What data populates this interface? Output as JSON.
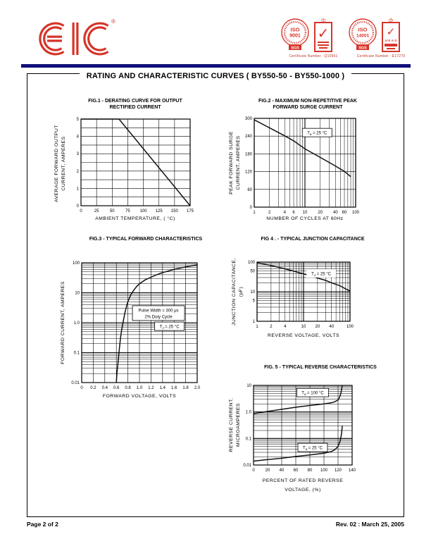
{
  "header": {
    "logo": {
      "text": "EIC",
      "registered": "®"
    },
    "certifications": [
      {
        "standard": "ISO 9001",
        "iso_word": "ISO",
        "iso_number": "9001",
        "registrar": "SGS",
        "certificate": "Certificate Number : Q10561"
      },
      {
        "standard": "ISO 14001",
        "iso_word": "ISO",
        "iso_number": "14001",
        "registrar": "SGS",
        "accreditation": "U K A S",
        "certificate": "Certificate Number : E17279"
      }
    ]
  },
  "title": "RATING AND CHARACTERISTIC CURVES  ( BY550-50 - BY550-1000 )",
  "footer": {
    "page": "Page 2 of 2",
    "revision": "Rev. 02 : March 25, 2005"
  },
  "colors": {
    "accent_red": "#d63429",
    "rule_blue": "#0e0e7a",
    "curve_black": "#111111"
  },
  "chart_data": [
    {
      "id": "fig1",
      "type": "line",
      "title_lines": [
        "FIG.1 - DERATING CURVE FOR OUTPUT",
        "RECTIFIED CURRENT"
      ],
      "xlabel_lines": [
        "AMBIENT TEMPERATURE, ( °C)"
      ],
      "ylabel_lines": [
        "AVERAGE FORWARD OUTPUT",
        "CURRENT, AMPERES"
      ],
      "x": {
        "min": 0,
        "max": 175,
        "scale": "linear",
        "ticks": [
          0,
          25,
          50,
          75,
          100,
          125,
          150,
          175
        ],
        "labels": [
          "0",
          "25",
          "50",
          "75",
          "100",
          "125",
          "150",
          "175"
        ]
      },
      "y": {
        "min": 0,
        "max": 5,
        "scale": "linear",
        "minor_step": 0.5,
        "ticks": [
          0,
          1,
          2,
          3,
          4,
          5
        ],
        "labels": [
          "0",
          "1",
          "2",
          "3",
          "4",
          "5"
        ]
      },
      "series": [
        {
          "name": "derating-curve",
          "points": [
            [
              0,
              5
            ],
            [
              61,
              5
            ],
            [
              175,
              0
            ]
          ]
        }
      ],
      "annotations": []
    },
    {
      "id": "fig2",
      "type": "line",
      "title_lines": [
        "FIG.2 - MAXIMUM NON-REPETITIVE PEAK",
        "FORWARD SURGE CURRENT"
      ],
      "xlabel_lines": [
        "NUMBER OF CYCLES AT 60Hz"
      ],
      "ylabel_lines": [
        "PEAK FORWARD SURGE",
        "CURRENT, AMPERES"
      ],
      "x": {
        "min": 1,
        "max": 100,
        "scale": "log",
        "ticks": [
          1,
          2,
          4,
          6,
          10,
          20,
          40,
          60,
          100
        ],
        "labels": [
          "1",
          "2",
          "4",
          "6",
          "10",
          "20",
          "40",
          "60",
          "100"
        ]
      },
      "y": {
        "min": 0,
        "max": 300,
        "scale": "linear",
        "ticks": [
          0,
          60,
          120,
          180,
          240,
          300
        ],
        "labels": [
          "0",
          "60",
          "120",
          "180",
          "240",
          "300"
        ]
      },
      "series": [
        {
          "name": "surge-current-curve",
          "points": [
            [
              1,
              295
            ],
            [
              2,
              268
            ],
            [
              4,
              241
            ],
            [
              6,
              224
            ],
            [
              10,
              197
            ],
            [
              20,
              168
            ],
            [
              40,
              139
            ],
            [
              60,
              121
            ],
            [
              80,
              103
            ]
          ]
        }
      ],
      "annotations": [
        {
          "t1": "T",
          "sub": "a",
          "t2": " = 25 °C",
          "boxed": true,
          "fx": 0.62,
          "fy": 0.16
        }
      ]
    },
    {
      "id": "fig3",
      "type": "line",
      "title_lines": [
        "FIG.3 - TYPICAL FORWARD CHARACTERISTICS"
      ],
      "xlabel_lines": [
        "FORWARD VOLTAGE, VOLTS"
      ],
      "ylabel_lines": [
        "FORWARD CURRENT,  AMPERES"
      ],
      "x": {
        "min": 0,
        "max": 2,
        "scale": "linear",
        "ticks": [
          0,
          0.2,
          0.4,
          0.6,
          0.8,
          1,
          1.2,
          1.4,
          1.6,
          1.8,
          2
        ],
        "labels": [
          "0",
          "0.2",
          "0.4",
          "0.6",
          "0.8",
          "1.0",
          "1.2",
          "1.4",
          "1.6",
          "1.8",
          "2.0"
        ]
      },
      "y": {
        "min": 0.01,
        "max": 100,
        "scale": "log",
        "ticks": [
          0.01,
          0.1,
          1,
          10,
          100
        ],
        "labels": [
          "0.01",
          "0.1",
          "1.0",
          "10",
          "100"
        ]
      },
      "series": [
        {
          "name": "forward-characteristic-curve",
          "points": [
            [
              0.6,
              0.01
            ],
            [
              0.61,
              0.02
            ],
            [
              0.63,
              0.05
            ],
            [
              0.65,
              0.12
            ],
            [
              0.67,
              0.28
            ],
            [
              0.69,
              0.55
            ],
            [
              0.72,
              1.1
            ],
            [
              0.75,
              2.2
            ],
            [
              0.78,
              3.8
            ],
            [
              0.8,
              5
            ],
            [
              0.85,
              8.5
            ],
            [
              0.9,
              12
            ],
            [
              0.95,
              16
            ],
            [
              1.0,
              20
            ],
            [
              1.1,
              27
            ],
            [
              1.2,
              33
            ],
            [
              1.3,
              40
            ],
            [
              1.4,
              47
            ],
            [
              1.5,
              53
            ],
            [
              1.6,
              60
            ],
            [
              1.7,
              66
            ],
            [
              1.8,
              73
            ],
            [
              1.9,
              79
            ],
            [
              2.0,
              85
            ]
          ]
        }
      ],
      "annotations": [
        {
          "lines": [
            "Pulse Width = 300 μs",
            "2% Duty Cycle"
          ],
          "boxed": true,
          "fx": 0.665,
          "fy": 0.42
        },
        {
          "t1": "T",
          "sub": "J",
          "t2": " = 25 °C",
          "boxed": true,
          "fx": 0.76,
          "fy": 0.53
        }
      ]
    },
    {
      "id": "fig4",
      "type": "line",
      "title_lines": [
        "FIG 4 . - TYPICAL JUNCTION CAPACITANCE"
      ],
      "xlabel_lines": [
        "REVERSE VOLTAGE, VOLTS"
      ],
      "ylabel_lines": [
        "JUNCTION CAPACITANCE,",
        "(pF)"
      ],
      "x": {
        "min": 1,
        "max": 100,
        "scale": "log",
        "ticks": [
          1,
          2,
          4,
          10,
          20,
          40,
          100
        ],
        "labels": [
          "1",
          "2",
          "4",
          "10",
          "20",
          "40",
          "100"
        ]
      },
      "y": {
        "min": 1,
        "max": 100,
        "scale": "log",
        "ticks": [
          1,
          5,
          10,
          50,
          100
        ],
        "labels": [
          "1",
          "5",
          "10",
          "50",
          "100"
        ]
      },
      "series": [
        {
          "name": "junction-capacitance-curve",
          "points": [
            [
              1,
              95
            ],
            [
              1.5,
              84
            ],
            [
              2,
              76
            ],
            [
              3,
              66
            ],
            [
              4,
              59
            ],
            [
              6,
              50
            ],
            [
              8,
              44
            ],
            [
              10,
              40
            ],
            [
              15,
              33
            ],
            [
              20,
              29
            ],
            [
              30,
              24
            ],
            [
              40,
              20
            ],
            [
              60,
              16
            ],
            [
              80,
              12.5
            ],
            [
              100,
              10.5
            ]
          ]
        }
      ],
      "annotations": [
        {
          "t1": "T",
          "sub": "J",
          "t2": " = 25 °C",
          "boxed": false,
          "fx": 0.69,
          "fy": 0.19
        }
      ]
    },
    {
      "id": "fig5",
      "type": "line",
      "title_lines": [
        "FIG. 5 - TYPICAL REVERSE CHARACTERISTICS"
      ],
      "xlabel_lines": [
        "PERCENT OF RATED REVERSE",
        "VOLTAGE, (%)"
      ],
      "ylabel_lines": [
        "REVERSE CURRENT,",
        "MICROAMPERES"
      ],
      "x": {
        "min": 0,
        "max": 140,
        "scale": "linear",
        "ticks": [
          0,
          20,
          40,
          60,
          80,
          100,
          120,
          140
        ],
        "labels": [
          "0",
          "20",
          "40",
          "60",
          "80",
          "100",
          "120",
          "140"
        ]
      },
      "y": {
        "min": 0.01,
        "max": 10,
        "scale": "log",
        "ticks": [
          0.01,
          0.1,
          1,
          10
        ],
        "labels": [
          "0.01",
          "0.1",
          "1.0",
          "10"
        ]
      },
      "series": [
        {
          "name": "reverse-current-100c-curve",
          "points": [
            [
              0,
              0.85
            ],
            [
              20,
              1.05
            ],
            [
              40,
              1.25
            ],
            [
              60,
              1.5
            ],
            [
              80,
              1.75
            ],
            [
              100,
              2.0
            ],
            [
              110,
              2.2
            ],
            [
              115,
              2.4
            ],
            [
              120,
              2.8
            ],
            [
              122,
              3.5
            ],
            [
              124,
              5
            ],
            [
              125,
              7
            ],
            [
              126,
              10
            ]
          ]
        },
        {
          "name": "reverse-current-25c-curve",
          "points": [
            [
              0,
              0.014
            ],
            [
              20,
              0.016
            ],
            [
              40,
              0.018
            ],
            [
              60,
              0.021
            ],
            [
              80,
              0.024
            ],
            [
              100,
              0.028
            ],
            [
              110,
              0.032
            ],
            [
              115,
              0.037
            ],
            [
              120,
              0.05
            ],
            [
              123,
              0.08
            ],
            [
              125,
              0.15
            ],
            [
              126,
              0.3
            ]
          ]
        }
      ],
      "annotations": [
        {
          "t1": "T",
          "sub": "a",
          "t2": " = 100 °C",
          "boxed": true,
          "fx": 0.6,
          "fy": 0.09
        },
        {
          "t1": "T",
          "sub": "a",
          "t2": " = 25 °C",
          "boxed": true,
          "fx": 0.6,
          "fy": 0.78
        }
      ]
    }
  ]
}
